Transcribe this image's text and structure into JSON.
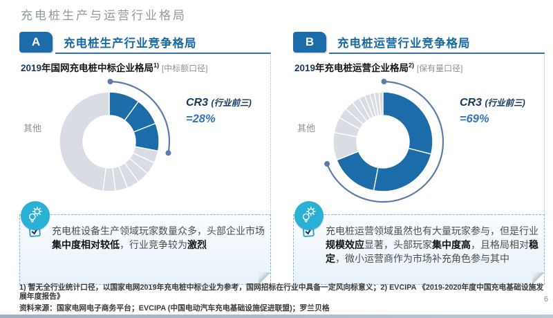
{
  "page": {
    "title": "充电桩生产与运营行业格局",
    "page_number": "6",
    "footnote": "1) 暂无全行业统计口径，以国家电网2019年充电桩中标企业为参考，国网招标在行业中具备一定风向标意义；2) EVCIPA 《2019-2020年度中国充电基础设施发展年度报告》",
    "source": "资料来源：国家电网电子商务平台；EVCIPA (中国电动汽车充电基础设施促进联盟)；罗兰贝格"
  },
  "colors": {
    "primary_blue": "#1b6ca8",
    "segment_gray": "#d9dce2",
    "heading_blue": "#1769a3",
    "cr3_dark": "#17375e",
    "cr3_value_blue": "#2e75b6",
    "arc": "#5b7bab",
    "accent_cyan": "#29b0d3"
  },
  "sections": [
    {
      "badge": "A",
      "heading": "充电桩生产行业竞争格局",
      "chart_title_year": "2019",
      "chart_title_rest": "年国网充电桩中标企业格局",
      "chart_title_sup": "1)",
      "chart_title_note": "[中标额口径]",
      "others_label": "其他",
      "cr3_label": "CR3 ",
      "cr3_paren": "(行业前三)",
      "cr3_value": "=28%",
      "callout_parts": [
        "充电桩设备生产领域玩家数量众多，头部企业市场",
        "集中度相对较低",
        "，行业竞争较为",
        "激烈",
        "",
        "",
        ""
      ]
    },
    {
      "badge": "B",
      "heading": "充电桩运营行业竞争格局",
      "chart_title_year": "2019",
      "chart_title_rest": "年充电桩运营企业格局",
      "chart_title_sup": "2)",
      "chart_title_note": "[保有量口径]",
      "others_label": "其他",
      "cr3_label": "CR3 ",
      "cr3_paren": "(行业前三)",
      "cr3_value": "=69%",
      "callout_parts": [
        "充电桩运营领域虽然也有大量玩家参与，但是行业",
        "规模效应",
        "显著，头部玩家",
        "集中度高",
        "，且格局相对",
        "稳定",
        "，微小运营商作为市场补充角色参与其中"
      ]
    }
  ],
  "chart_data": [
    {
      "type": "pie",
      "donut": true,
      "title": "2019年国网充电桩中标企业格局 [中标额口径]",
      "annotation": "CR3 (行业前三) =28%",
      "cr3_percent": 28,
      "cr3_segments": [
        10,
        9,
        9
      ],
      "other_segments": [
        4,
        4,
        4,
        4,
        4,
        4,
        48
      ],
      "others_label": "其他",
      "legend_position": "none",
      "start_angle_deg_from_top": 0,
      "direction": "clockwise"
    },
    {
      "type": "pie",
      "donut": true,
      "title": "2019年充电桩运营企业格局 [保有量口径]",
      "annotation": "CR3 (行业前三) =69%",
      "cr3_percent": 69,
      "cr3_segments": [
        29,
        24,
        16
      ],
      "other_segments": [
        9,
        5,
        3.5,
        3,
        2.5,
        2,
        1.75,
        1.5,
        1.5,
        1.25
      ],
      "others_label": "其他",
      "legend_position": "none",
      "start_angle_deg_from_top": 0,
      "direction": "clockwise"
    }
  ]
}
